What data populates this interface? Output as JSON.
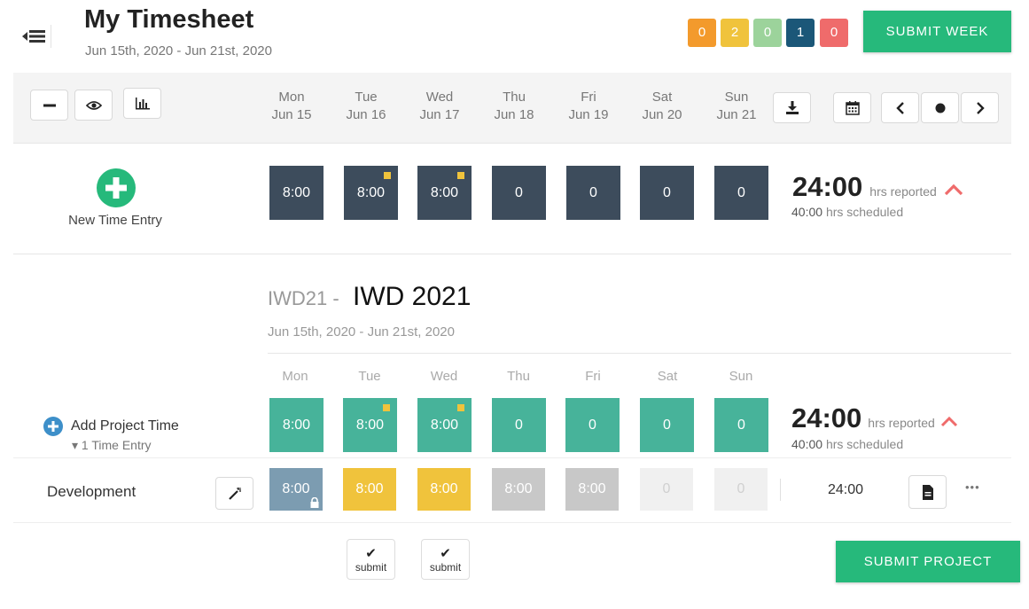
{
  "header": {
    "title": "My Timesheet",
    "date_range": "Jun 15th, 2020 - Jun 21st, 2020",
    "submit_week_label": "SUBMIT WEEK"
  },
  "status_badges": [
    {
      "count": "0",
      "color": "#f39a2c"
    },
    {
      "count": "2",
      "color": "#f0c33c"
    },
    {
      "count": "0",
      "color": "#9cd39b"
    },
    {
      "count": "1",
      "color": "#1b5778"
    },
    {
      "count": "0",
      "color": "#ef6b6b"
    }
  ],
  "toolbar": {
    "days": [
      {
        "day": "Mon",
        "date": "Jun 15"
      },
      {
        "day": "Tue",
        "date": "Jun 16"
      },
      {
        "day": "Wed",
        "date": "Jun 17"
      },
      {
        "day": "Thu",
        "date": "Jun 18"
      },
      {
        "day": "Fri",
        "date": "Jun 19"
      },
      {
        "day": "Sat",
        "date": "Jun 20"
      },
      {
        "day": "Sun",
        "date": "Jun 21"
      }
    ]
  },
  "week_summary": {
    "new_entry_label": "New Time Entry",
    "cells": [
      "8:00",
      "8:00",
      "8:00",
      "0",
      "0",
      "0",
      "0"
    ],
    "reported": "24:00",
    "reported_label": "hrs reported",
    "scheduled": "40:00",
    "scheduled_label": "hrs scheduled"
  },
  "project": {
    "code": "IWD21 -",
    "name": "IWD 2021",
    "date_range": "Jun 15th, 2020 - Jun 21st, 2020",
    "days": [
      "Mon",
      "Tue",
      "Wed",
      "Thu",
      "Fri",
      "Sat",
      "Sun"
    ],
    "add_time_label": "Add Project Time",
    "entries_label": "▾ 1 Time Entry",
    "cells": [
      "8:00",
      "8:00",
      "8:00",
      "0",
      "0",
      "0",
      "0"
    ],
    "reported": "24:00",
    "reported_label": "hrs reported",
    "scheduled": "40:00",
    "scheduled_label": "hrs scheduled",
    "submit_label": "SUBMIT PROJECT"
  },
  "task_row": {
    "name": "Development",
    "cells": [
      "8:00",
      "8:00",
      "8:00",
      "8:00",
      "8:00",
      "0",
      "0"
    ],
    "total": "24:00",
    "more": "•••"
  },
  "mini_submit": {
    "label": "submit",
    "check": "✔"
  },
  "colors": {
    "accent_green": "#26b97b",
    "dark_cell": "#3d4c5c",
    "teal_cell": "#47b39a",
    "pending_yellow": "#f0c33c",
    "locked_blue": "#7c9cb1",
    "up_arrow_red": "#ef6b6b"
  }
}
